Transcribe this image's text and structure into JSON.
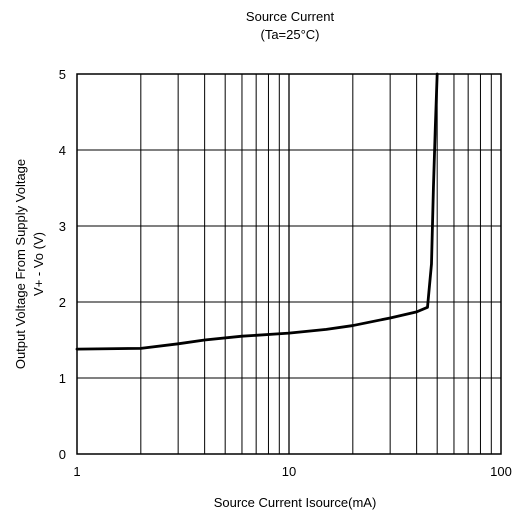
{
  "chart_data": {
    "type": "line",
    "title": "Source Current",
    "subtitle": "(Ta=25°C)",
    "xlabel": "Source Current Isource(mA)",
    "ylabel_line1": "Output Voltage From Supply Voltage",
    "ylabel_line2": "V+ - Vo  (V)",
    "xscale": "log",
    "xlim": [
      1,
      100
    ],
    "ylim": [
      0,
      5
    ],
    "xticks": [
      1,
      10,
      100
    ],
    "xtick_labels": [
      "1",
      "10",
      "100"
    ],
    "yticks": [
      0,
      1,
      2,
      3,
      4,
      5
    ],
    "ytick_labels": [
      "0",
      "1",
      "2",
      "3",
      "4",
      "5"
    ],
    "grid": true,
    "line_color": "#000000",
    "series": [
      {
        "x": [
          1,
          2,
          3,
          4,
          6,
          10,
          15,
          20,
          30,
          40,
          45,
          47,
          48,
          49,
          50
        ],
        "y": [
          1.38,
          1.39,
          1.45,
          1.5,
          1.55,
          1.59,
          1.64,
          1.69,
          1.79,
          1.87,
          1.93,
          2.5,
          3.5,
          4.3,
          5.0
        ]
      }
    ]
  }
}
